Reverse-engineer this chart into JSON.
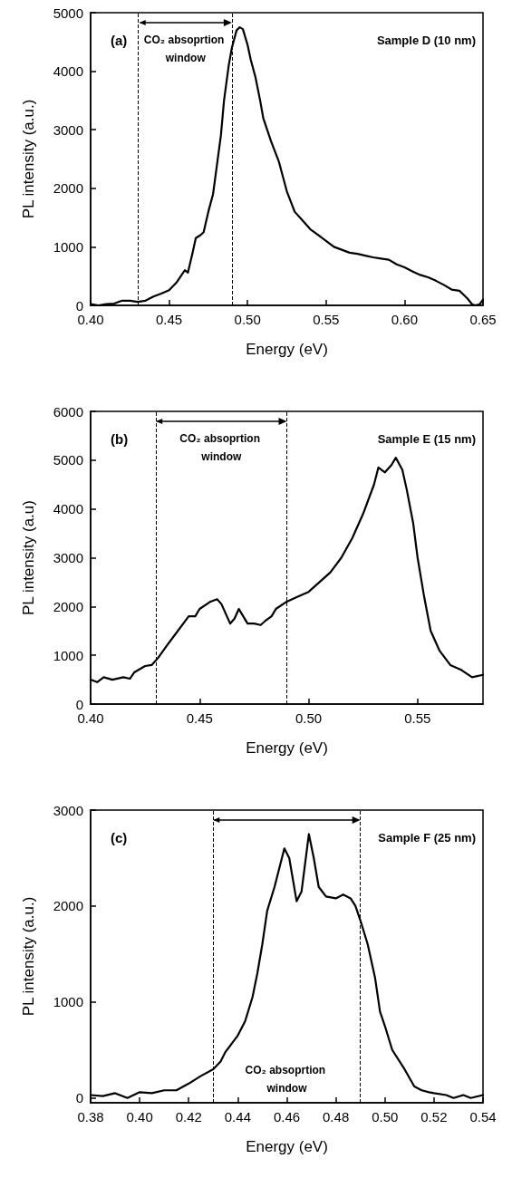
{
  "chart_data": [
    {
      "type": "line",
      "xlabel": "Energy (eV)",
      "ylabel": "PL intensity (a.u.)",
      "annotations": [
        "(a)",
        "Sample D (10 nm)",
        "CO₂ absoprtion window"
      ],
      "xlim": [
        0.4,
        0.65
      ],
      "xticks": [
        {
          "value": 0.4,
          "label": "0.40"
        },
        {
          "value": 0.45,
          "label": "0.45"
        },
        {
          "value": 0.5,
          "label": "0.50"
        },
        {
          "value": 0.55,
          "label": "0.55"
        },
        {
          "value": 0.6,
          "label": "0.60"
        },
        {
          "value": 0.65,
          "label": "0.65"
        }
      ],
      "ylim": [
        0,
        5000
      ],
      "yticks": [
        0,
        1000,
        2000,
        3000,
        4000,
        5000
      ],
      "grid": false,
      "marker": "none",
      "line_style": "solid",
      "ref_lines": [
        {
          "axis": "x",
          "value": 0.431,
          "line_style": "dashed",
          "color": "#000000"
        },
        {
          "axis": "x",
          "value": 0.49,
          "line_style": "dashed",
          "color": "#000000"
        }
      ],
      "series": [
        {
          "color": "#000000",
          "x": [
            0.4,
            0.405,
            0.41,
            0.415,
            0.42,
            0.425,
            0.43,
            0.435,
            0.44,
            0.445,
            0.45,
            0.455,
            0.46,
            0.462,
            0.465,
            0.467,
            0.47,
            0.472,
            0.475,
            0.478,
            0.48,
            0.483,
            0.485,
            0.488,
            0.49,
            0.493,
            0.495,
            0.497,
            0.5,
            0.502,
            0.505,
            0.508,
            0.51,
            0.515,
            0.52,
            0.525,
            0.53,
            0.535,
            0.54,
            0.545,
            0.55,
            0.555,
            0.56,
            0.565,
            0.57,
            0.575,
            0.58,
            0.585,
            0.59,
            0.595,
            0.6,
            0.605,
            0.61,
            0.615,
            0.62,
            0.625,
            0.63,
            0.635,
            0.64,
            0.643,
            0.645,
            0.648,
            0.65
          ],
          "values": [
            20,
            0,
            20,
            30,
            80,
            80,
            60,
            80,
            150,
            200,
            260,
            400,
            600,
            560,
            900,
            1150,
            1200,
            1250,
            1600,
            1900,
            2300,
            2900,
            3500,
            4100,
            4400,
            4700,
            4750,
            4720,
            4450,
            4200,
            3900,
            3500,
            3200,
            2800,
            2450,
            1950,
            1600,
            1450,
            1300,
            1200,
            1100,
            1000,
            950,
            900,
            880,
            850,
            820,
            800,
            780,
            700,
            650,
            580,
            520,
            480,
            420,
            350,
            270,
            250,
            120,
            20,
            0,
            20,
            100
          ]
        }
      ]
    },
    {
      "type": "line",
      "xlabel": "Energy (eV)",
      "ylabel": "PL intensity (a.u)",
      "annotations": [
        "(b)",
        "Sample E (15 nm)",
        "CO₂ absoprtion window"
      ],
      "xlim": [
        0.4,
        0.58
      ],
      "xticks": [
        {
          "value": 0.4,
          "label": "0.40"
        },
        {
          "value": 0.45,
          "label": "0.45"
        },
        {
          "value": 0.5,
          "label": "0.50"
        },
        {
          "value": 0.55,
          "label": "0.55"
        }
      ],
      "ylim": [
        0,
        6000
      ],
      "yticks": [
        0,
        1000,
        2000,
        3000,
        4000,
        5000,
        6000
      ],
      "grid": false,
      "marker": "none",
      "line_style": "solid",
      "ref_lines": [
        {
          "axis": "x",
          "value": 0.43,
          "line_style": "dashed",
          "color": "#000000"
        },
        {
          "axis": "x",
          "value": 0.49,
          "line_style": "dashed",
          "color": "#000000"
        }
      ],
      "series": [
        {
          "color": "#000000",
          "x": [
            0.4,
            0.403,
            0.406,
            0.41,
            0.415,
            0.418,
            0.42,
            0.425,
            0.428,
            0.431,
            0.435,
            0.44,
            0.445,
            0.448,
            0.45,
            0.455,
            0.458,
            0.46,
            0.462,
            0.464,
            0.466,
            0.468,
            0.47,
            0.472,
            0.475,
            0.478,
            0.48,
            0.483,
            0.485,
            0.49,
            0.495,
            0.5,
            0.505,
            0.51,
            0.515,
            0.52,
            0.525,
            0.53,
            0.532,
            0.535,
            0.538,
            0.54,
            0.543,
            0.545,
            0.548,
            0.55,
            0.553,
            0.556,
            0.56,
            0.565,
            0.57,
            0.575,
            0.58
          ],
          "values": [
            500,
            450,
            550,
            500,
            550,
            520,
            650,
            780,
            800,
            950,
            1200,
            1500,
            1800,
            1800,
            1950,
            2100,
            2150,
            2050,
            1850,
            1650,
            1750,
            1950,
            1800,
            1650,
            1650,
            1620,
            1700,
            1800,
            1950,
            2100,
            2200,
            2300,
            2500,
            2700,
            3000,
            3400,
            3900,
            4500,
            4850,
            4750,
            4900,
            5050,
            4800,
            4400,
            3700,
            3000,
            2200,
            1500,
            1100,
            800,
            700,
            550,
            600
          ]
        }
      ]
    },
    {
      "type": "line",
      "xlabel": "Energy (eV)",
      "ylabel": "PL intensity (a.u.)",
      "annotations": [
        "(c)",
        "Sample F (25 nm)",
        "CO₂ absoprtion window"
      ],
      "xlim": [
        0.38,
        0.54
      ],
      "xticks": [
        {
          "value": 0.38,
          "label": "0.38"
        },
        {
          "value": 0.4,
          "label": "0.40"
        },
        {
          "value": 0.42,
          "label": "0.42"
        },
        {
          "value": 0.44,
          "label": "0.44"
        },
        {
          "value": 0.46,
          "label": "0.46"
        },
        {
          "value": 0.48,
          "label": "0.48"
        },
        {
          "value": 0.5,
          "label": "0.50"
        },
        {
          "value": 0.52,
          "label": "0.52"
        },
        {
          "value": 0.54,
          "label": "0.54"
        }
      ],
      "ylim": [
        -50,
        3000
      ],
      "yticks": [
        0,
        1000,
        2000,
        3000
      ],
      "grid": false,
      "marker": "none",
      "line_style": "solid",
      "ref_lines": [
        {
          "axis": "x",
          "value": 0.43,
          "line_style": "dashed",
          "color": "#000000"
        },
        {
          "axis": "x",
          "value": 0.49,
          "line_style": "dashed",
          "color": "#000000"
        }
      ],
      "series": [
        {
          "color": "#000000",
          "x": [
            0.38,
            0.385,
            0.39,
            0.395,
            0.4,
            0.405,
            0.41,
            0.415,
            0.42,
            0.425,
            0.43,
            0.433,
            0.435,
            0.44,
            0.443,
            0.446,
            0.448,
            0.45,
            0.452,
            0.455,
            0.457,
            0.459,
            0.461,
            0.464,
            0.466,
            0.469,
            0.471,
            0.473,
            0.476,
            0.48,
            0.483,
            0.486,
            0.488,
            0.49,
            0.493,
            0.496,
            0.498,
            0.5,
            0.503,
            0.508,
            0.512,
            0.515,
            0.518,
            0.52,
            0.525,
            0.528,
            0.532,
            0.535,
            0.54
          ],
          "values": [
            30,
            20,
            50,
            0,
            60,
            50,
            80,
            80,
            150,
            230,
            300,
            380,
            480,
            650,
            800,
            1050,
            1300,
            1600,
            1950,
            2200,
            2400,
            2600,
            2500,
            2050,
            2150,
            2750,
            2500,
            2200,
            2100,
            2080,
            2120,
            2080,
            2000,
            1850,
            1600,
            1250,
            900,
            750,
            500,
            300,
            120,
            80,
            60,
            50,
            30,
            0,
            30,
            0,
            30
          ]
        }
      ]
    }
  ]
}
